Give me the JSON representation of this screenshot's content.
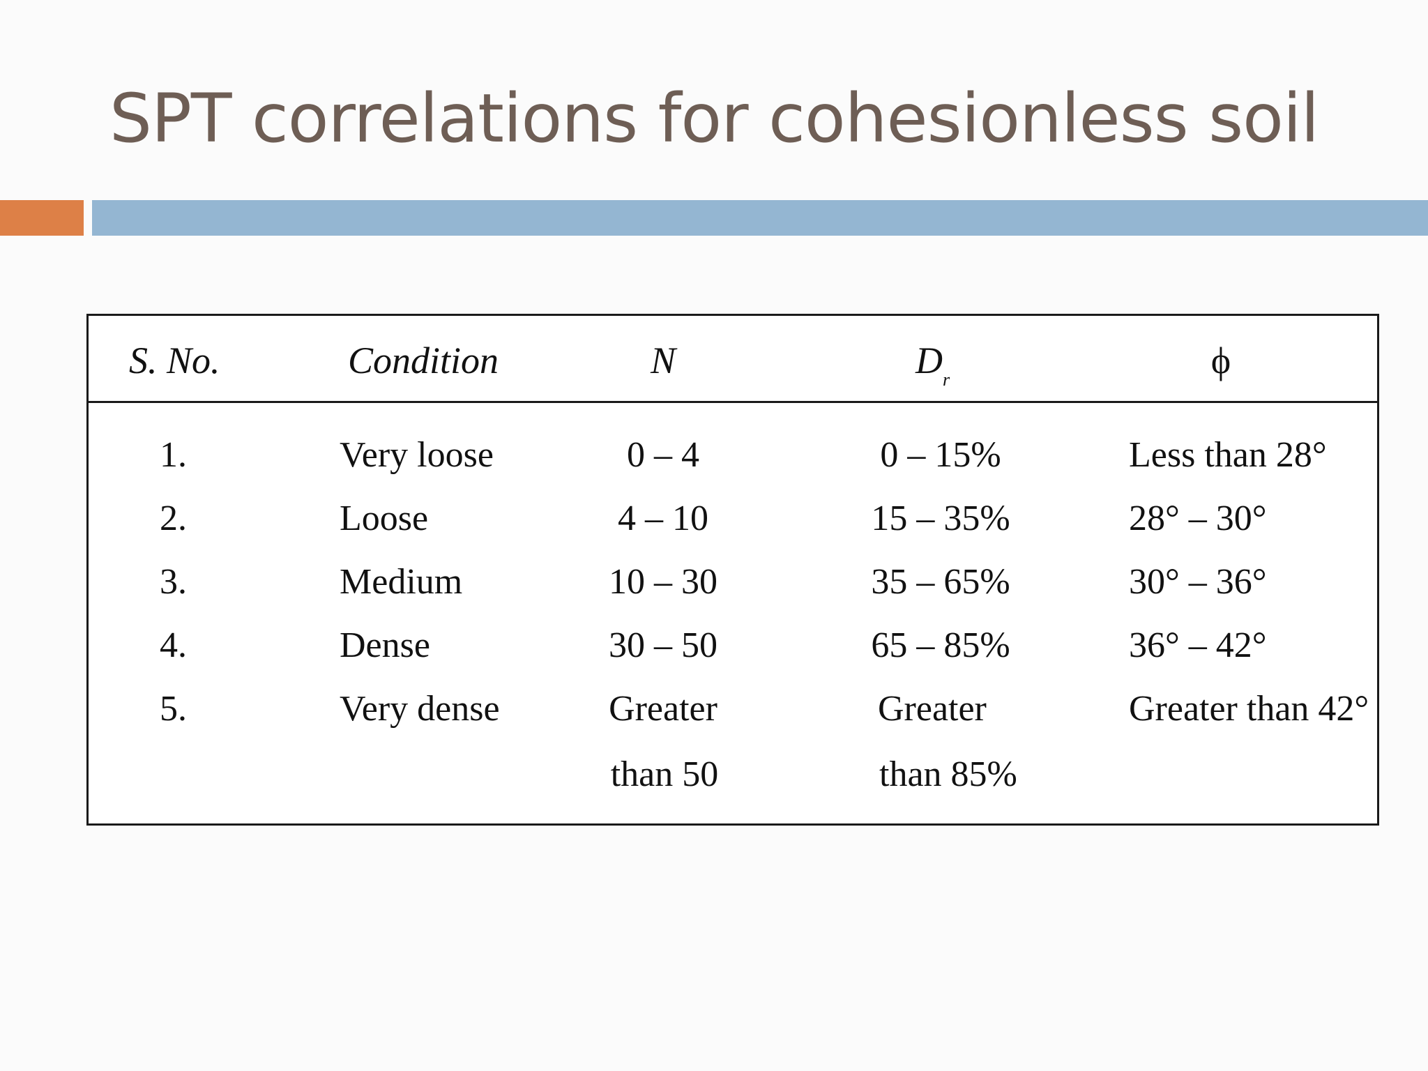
{
  "slide": {
    "title": "SPT correlations for cohesionless soil"
  },
  "table": {
    "headers": {
      "sno": "S. No.",
      "condition": "Condition",
      "n": "N",
      "dr_main": "D",
      "dr_sub": "r",
      "phi": "ϕ"
    },
    "rows": [
      {
        "sno": "1.",
        "condition": "Very loose",
        "n": "0 – 4",
        "dr": "0 – 15%",
        "phi": "Less than 28°"
      },
      {
        "sno": "2.",
        "condition": "Loose",
        "n": "4 – 10",
        "dr": "15 – 35%",
        "phi": "28° – 30°"
      },
      {
        "sno": "3.",
        "condition": "Medium",
        "n": "10 – 30",
        "dr": "35 – 65%",
        "phi": "30° – 36°"
      },
      {
        "sno": "4.",
        "condition": "Dense",
        "n": "30 – 50",
        "dr": "65 – 85%",
        "phi": "36° – 42°"
      },
      {
        "sno": "5.",
        "condition": "Very dense",
        "n": "Greater",
        "n_cont": "than 50",
        "dr": "Greater",
        "dr_cont": "than 85%",
        "phi": "Greater than 42°"
      }
    ]
  },
  "colors": {
    "title": "#6e5e55",
    "accent_orange": "#dd8047",
    "accent_blue": "#94b6d2"
  }
}
